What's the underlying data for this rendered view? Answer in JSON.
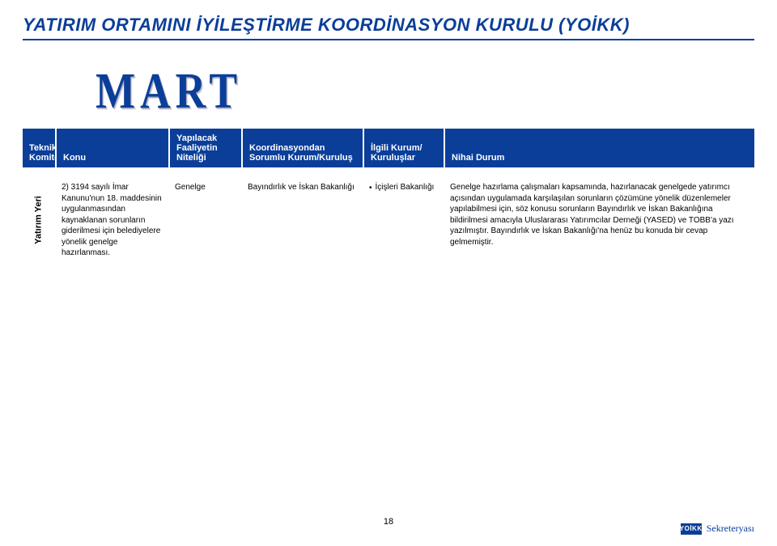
{
  "colors": {
    "brand": "#0a3e99",
    "text": "#000000",
    "bg": "#ffffff"
  },
  "title": "YATIRIM ORTAMINI İYİLEŞTİRME KOORDİNASYON KURULU (YOİKK)",
  "month_label": "MART",
  "table": {
    "headers": {
      "col0": "Teknik Komite",
      "col1": "Konu",
      "col2": "Yapılacak Faaliyetin Niteliği",
      "col3": "Koordinasyondan Sorumlu Kurum/Kuruluş",
      "col4": "İlgili Kurum/ Kuruluşlar",
      "col5": "Nihai Durum"
    },
    "row": {
      "komite_vertical": "Yatırım Yeri",
      "konu": "2) 3194 sayılı İmar Kanunu'nun 18. maddesinin uygulanmasından kaynaklanan sorunların giderilmesi için belediyelere yönelik genelge hazırlanması.",
      "nitelik": "Genelge",
      "sorumlu": "Bayındırlık ve İskan Bakanlığı",
      "ilgili": "İçişleri Bakanlığı",
      "durum": "Genelge hazırlama çalışmaları kapsamında, hazırlanacak genelgede yatırımcı açısından uygulamada karşılaşılan sorunların çözümüne yönelik düzenlemeler yapılabilmesi için, söz konusu sorunların Bayındırlık ve İskan Bakanlığına bildirilmesi amacıyla Uluslararası Yatırımcılar Derneği (YASED) ve TOBB'a yazı yazılmıştır. Bayındırlık ve İskan Bakanlığı'na henüz bu konuda bir cevap gelmemiştir."
    }
  },
  "page_number": "18",
  "footer": {
    "logo_text": "YOİKK",
    "label": "Sekreteryası"
  }
}
